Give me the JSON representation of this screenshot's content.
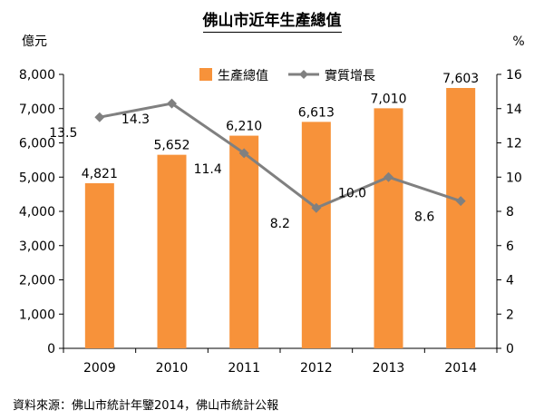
{
  "title": "佛山市近年生產總值",
  "source": "資料來源：佛山市統計年鑒2014，佛山市統計公報",
  "chart_data": {
    "type": "bar",
    "categories": [
      "2009",
      "2010",
      "2011",
      "2012",
      "2013",
      "2014"
    ],
    "series": [
      {
        "name": "生產總值",
        "type": "bar",
        "axis": "left",
        "values": [
          4821,
          5652,
          6210,
          6613,
          7010,
          7603
        ],
        "labels": [
          "4,821",
          "5,652",
          "6,210",
          "6,613",
          "7,010",
          "7,603"
        ],
        "color": "#F7923A"
      },
      {
        "name": "實質增長",
        "type": "line",
        "axis": "right",
        "values": [
          13.5,
          14.3,
          11.4,
          8.2,
          10.0,
          8.6
        ],
        "labels": [
          "13.5",
          "14.3",
          "11.4",
          "8.2",
          "10.0",
          "8.6"
        ],
        "color": "#808080"
      }
    ],
    "y_left": {
      "unit": "億元",
      "range": [
        0,
        8000
      ],
      "ticks": [
        0,
        1000,
        2000,
        3000,
        4000,
        5000,
        6000,
        7000,
        8000
      ],
      "tick_labels": [
        "0",
        "1,000",
        "2,000",
        "3,000",
        "4,000",
        "5,000",
        "6,000",
        "7,000",
        "8,000"
      ]
    },
    "y_right": {
      "unit": "%",
      "range": [
        0,
        16
      ],
      "ticks": [
        0,
        2,
        4,
        6,
        8,
        10,
        12,
        14,
        16
      ],
      "tick_labels": [
        "0",
        "2",
        "4",
        "6",
        "8",
        "10",
        "12",
        "14",
        "16"
      ]
    },
    "grid": false,
    "legend": "top-center"
  }
}
